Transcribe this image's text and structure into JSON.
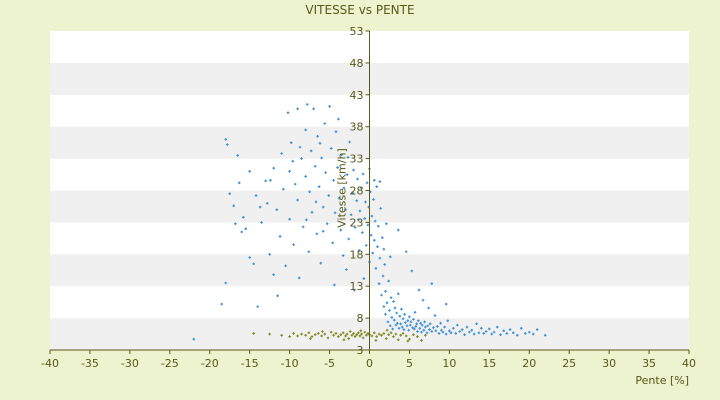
{
  "chart_data": {
    "type": "scatter",
    "title": "VITESSE vs PENTE",
    "xlabel": "Pente [%]",
    "ylabel": "Vitesse [km/h]",
    "xlim": [
      -40,
      40
    ],
    "ylim": [
      3,
      53
    ],
    "xticks": [
      "-40",
      "-35",
      "-30",
      "-25",
      "-20",
      "-15",
      "-10",
      "-5",
      "0",
      "5",
      "10",
      "15",
      "20",
      "25",
      "30",
      "35",
      "40"
    ],
    "yticks": [
      "3",
      "8",
      "13",
      "18",
      "23",
      "28",
      "33",
      "38",
      "43",
      "48",
      "53"
    ],
    "grid": "horizontal alternating bands",
    "legend": "none",
    "colors": {
      "background": "#edf2cf",
      "plot_band_light": "#ffffff",
      "plot_band_dark": "#f0f0f0",
      "axis": "#55591a",
      "series_main": "#3a8fd9",
      "series_low": "#7f8a1e"
    },
    "series": [
      {
        "color": "#3a8fd9",
        "points": [
          [
            -22,
            4.7
          ],
          [
            -18.5,
            10.2
          ],
          [
            -18,
            13.5
          ],
          [
            -18,
            36
          ],
          [
            -17.8,
            35.2
          ],
          [
            -17.5,
            27.5
          ],
          [
            -17,
            25.6
          ],
          [
            -16.5,
            33.5
          ],
          [
            -16.3,
            29.2
          ],
          [
            -16,
            21.5
          ],
          [
            -15.8,
            23.8
          ],
          [
            -15.5,
            22
          ],
          [
            -15,
            17.5
          ],
          [
            -15,
            31
          ],
          [
            -14.5,
            16.5
          ],
          [
            -14.2,
            27.2
          ],
          [
            -14,
            9.8
          ],
          [
            -13.5,
            23
          ],
          [
            -13,
            29.5
          ],
          [
            -12.8,
            26
          ],
          [
            -12.5,
            18
          ],
          [
            -12,
            31.5
          ],
          [
            -12,
            14.8
          ],
          [
            -11.6,
            25
          ],
          [
            -11.2,
            20.8
          ],
          [
            -11,
            33.8
          ],
          [
            -10.8,
            28.2
          ],
          [
            -10.5,
            16.2
          ],
          [
            -10.2,
            40.2
          ],
          [
            -10,
            31
          ],
          [
            -10,
            23.5
          ],
          [
            -9.8,
            35.5
          ],
          [
            -9.5,
            19.5
          ],
          [
            -9.3,
            29
          ],
          [
            -9,
            40.8
          ],
          [
            -9,
            26.5
          ],
          [
            -8.8,
            14.3
          ],
          [
            -8.5,
            33
          ],
          [
            -8.3,
            22.3
          ],
          [
            -8,
            37.5
          ],
          [
            -8,
            30.2
          ],
          [
            -7.8,
            41.5
          ],
          [
            -7.6,
            18.4
          ],
          [
            -7.5,
            27.8
          ],
          [
            -7.3,
            34.2
          ],
          [
            -7.2,
            24.6
          ],
          [
            -7,
            40.8
          ],
          [
            -6.8,
            31.8
          ],
          [
            -6.6,
            21.2
          ],
          [
            -6.5,
            36.5
          ],
          [
            -6.3,
            28.6
          ],
          [
            -6.1,
            16.6
          ],
          [
            -6,
            33.1
          ],
          [
            -5.8,
            25.4
          ],
          [
            -5.6,
            38.5
          ],
          [
            -5.5,
            30.8
          ],
          [
            -5.3,
            22.8
          ],
          [
            -5.1,
            27.2
          ],
          [
            -5,
            41.2
          ],
          [
            -4.8,
            34.6
          ],
          [
            -4.6,
            19.8
          ],
          [
            -4.5,
            29.6
          ],
          [
            -4.3,
            24.5
          ],
          [
            -4.2,
            37.2
          ],
          [
            -4,
            31.6
          ],
          [
            -3.8,
            26.8
          ],
          [
            -3.6,
            21.8
          ],
          [
            -3.5,
            33.6
          ],
          [
            -3.3,
            17.8
          ],
          [
            -3.2,
            28.4
          ],
          [
            -3,
            25
          ],
          [
            -2.8,
            30.5
          ],
          [
            -2.6,
            20.4
          ],
          [
            -2.5,
            35.6
          ],
          [
            -2.3,
            24.2
          ],
          [
            -2.1,
            27.6
          ],
          [
            -2,
            31.2
          ],
          [
            -1.8,
            22.2
          ],
          [
            -1.6,
            26.4
          ],
          [
            -1.5,
            29.8
          ],
          [
            -1.3,
            18.6
          ],
          [
            -1.2,
            24.8
          ],
          [
            -1,
            28.4
          ],
          [
            -0.9,
            21.4
          ],
          [
            -0.8,
            30.6
          ],
          [
            -0.6,
            23.6
          ],
          [
            -0.5,
            26.2
          ],
          [
            -0.4,
            19.4
          ],
          [
            -0.3,
            29.2
          ],
          [
            -0.2,
            22.6
          ],
          [
            -0.1,
            25.4
          ],
          [
            0,
            31.4
          ],
          [
            0,
            16.8
          ],
          [
            0.1,
            27.8
          ],
          [
            0.2,
            21
          ],
          [
            0.3,
            24
          ],
          [
            0.4,
            18.2
          ],
          [
            0.5,
            26.6
          ],
          [
            0.6,
            20.2
          ],
          [
            0.7,
            23.2
          ],
          [
            0.8,
            15.8
          ],
          [
            0.9,
            28.6
          ],
          [
            1,
            19.2
          ],
          [
            1.1,
            22.4
          ],
          [
            1.2,
            13.4
          ],
          [
            1.3,
            17.4
          ],
          [
            1.4,
            25.2
          ],
          [
            1.5,
            11.6
          ],
          [
            1.6,
            20.6
          ],
          [
            1.7,
            14.6
          ],
          [
            1.8,
            9.8
          ],
          [
            1.9,
            16.4
          ],
          [
            2,
            12.2
          ],
          [
            2,
            8.6
          ],
          [
            2.1,
            22.8
          ],
          [
            2.2,
            10.4
          ],
          [
            2.3,
            7.4
          ],
          [
            2.4,
            13.8
          ],
          [
            2.5,
            9.2
          ],
          [
            2.6,
            6.8
          ],
          [
            2.7,
            11.2
          ],
          [
            2.8,
            8.1
          ],
          [
            2.9,
            6.3
          ],
          [
            3,
            10.6
          ],
          [
            3.1,
            7.7
          ],
          [
            3.2,
            9.6
          ],
          [
            3.3,
            6.9
          ],
          [
            3.4,
            8.8
          ],
          [
            3.5,
            7.2
          ],
          [
            3.6,
            11.8
          ],
          [
            3.7,
            6.4
          ],
          [
            3.8,
            8.3
          ],
          [
            3.9,
            7.1
          ],
          [
            4,
            9.4
          ],
          [
            4.1,
            6.6
          ],
          [
            4.2,
            7.9
          ],
          [
            4.3,
            6.2
          ],
          [
            4.4,
            8.6
          ],
          [
            4.5,
            7.3
          ],
          [
            4.6,
            18.4
          ],
          [
            4.7,
            6.8
          ],
          [
            4.8,
            7.6
          ],
          [
            4.9,
            6.1
          ],
          [
            5,
            8.2
          ],
          [
            5.1,
            6.9
          ],
          [
            5.2,
            7.4
          ],
          [
            5.3,
            15.4
          ],
          [
            5.4,
            6.5
          ],
          [
            5.5,
            7.8
          ],
          [
            5.6,
            6.3
          ],
          [
            5.7,
            8.9
          ],
          [
            5.8,
            6.7
          ],
          [
            5.9,
            7.1
          ],
          [
            6,
            5.9
          ],
          [
            6.1,
            7.6
          ],
          [
            6.2,
            12.4
          ],
          [
            6.3,
            6.4
          ],
          [
            6.4,
            7.2
          ],
          [
            6.5,
            5.8
          ],
          [
            6.6,
            6.9
          ],
          [
            6.7,
            10.8
          ],
          [
            6.8,
            6.1
          ],
          [
            6.9,
            7.4
          ],
          [
            7,
            6.6
          ],
          [
            7.2,
            5.7
          ],
          [
            7.3,
            6.8
          ],
          [
            7.4,
            9.6
          ],
          [
            7.5,
            6.2
          ],
          [
            7.6,
            7.1
          ],
          [
            7.8,
            5.9
          ],
          [
            8,
            6.5
          ],
          [
            8.2,
            8.4
          ],
          [
            8.3,
            6
          ],
          [
            8.5,
            6.7
          ],
          [
            8.7,
            5.6
          ],
          [
            8.9,
            7.2
          ],
          [
            9,
            6.1
          ],
          [
            9.2,
            5.8
          ],
          [
            9.4,
            6.6
          ],
          [
            9.6,
            5.5
          ],
          [
            9.8,
            7.6
          ],
          [
            10,
            6
          ],
          [
            10.2,
            5.7
          ],
          [
            10.5,
            6.4
          ],
          [
            10.8,
            5.6
          ],
          [
            11,
            6.9
          ],
          [
            11.3,
            5.9
          ],
          [
            11.6,
            6.2
          ],
          [
            11.9,
            5.4
          ],
          [
            12.2,
            6.6
          ],
          [
            12.5,
            5.8
          ],
          [
            12.8,
            6.1
          ],
          [
            13.1,
            5.5
          ],
          [
            13.4,
            7.1
          ],
          [
            13.7,
            5.7
          ],
          [
            14,
            6.4
          ],
          [
            14.3,
            5.6
          ],
          [
            14.6,
            5.9
          ],
          [
            15,
            6.3
          ],
          [
            15.3,
            5.5
          ],
          [
            15.6,
            5.8
          ],
          [
            16,
            6.6
          ],
          [
            16.4,
            5.4
          ],
          [
            16.8,
            6
          ],
          [
            17.2,
            5.6
          ],
          [
            17.6,
            6.2
          ],
          [
            18,
            5.7
          ],
          [
            18.5,
            5.3
          ],
          [
            19,
            6.4
          ],
          [
            19.5,
            5.6
          ],
          [
            20,
            5.8
          ],
          [
            20.5,
            5.5
          ],
          [
            21,
            6.2
          ],
          [
            22,
            5.3
          ],
          [
            -5.8,
            21.6
          ],
          [
            -12.4,
            29.6
          ],
          [
            -9.6,
            32.6
          ],
          [
            -13.7,
            25.4
          ],
          [
            -16.8,
            22.8
          ],
          [
            -11.5,
            11.5
          ],
          [
            -4.4,
            13.2
          ],
          [
            -2.9,
            15.6
          ],
          [
            -1.9,
            12.4
          ],
          [
            -0.7,
            14.2
          ],
          [
            1.3,
            29.4
          ],
          [
            9.6,
            10.2
          ],
          [
            7.8,
            13.4
          ],
          [
            3.6,
            21.8
          ],
          [
            1.8,
            18.8
          ],
          [
            -6.7,
            26.2
          ],
          [
            -7.9,
            23.4
          ],
          [
            -8.7,
            34.8
          ],
          [
            -3.9,
            39.2
          ],
          [
            -6.2,
            35.4
          ],
          [
            -2.7,
            33.2
          ],
          [
            -1.4,
            23.4
          ],
          [
            0.6,
            29.6
          ],
          [
            2.6,
            17.6
          ]
        ]
      },
      {
        "color": "#7f8a1e",
        "points": [
          [
            -14.5,
            5.6
          ],
          [
            -11,
            5.3
          ],
          [
            -10,
            5.1
          ],
          [
            -9.5,
            5.6
          ],
          [
            -9,
            5.2
          ],
          [
            -8.5,
            5.5
          ],
          [
            -8,
            5.3
          ],
          [
            -7.6,
            5.7
          ],
          [
            -7.2,
            5.1
          ],
          [
            -6.8,
            5.4
          ],
          [
            -6.4,
            5.6
          ],
          [
            -6,
            5.2
          ],
          [
            -5.6,
            5.5
          ],
          [
            -5.2,
            4.9
          ],
          [
            -4.8,
            5.8
          ],
          [
            -4.5,
            5.3
          ],
          [
            -4.2,
            5.6
          ],
          [
            -3.9,
            5.1
          ],
          [
            -3.6,
            5.4
          ],
          [
            -3.3,
            5.7
          ],
          [
            -3,
            5.2
          ],
          [
            -2.8,
            5.5
          ],
          [
            -2.6,
            4.8
          ],
          [
            -2.4,
            5.9
          ],
          [
            -2.2,
            5.3
          ],
          [
            -2,
            5.6
          ],
          [
            -1.8,
            5.1
          ],
          [
            -1.6,
            5.4
          ],
          [
            -1.4,
            5.7
          ],
          [
            -1.2,
            5.2
          ],
          [
            -1,
            5.5
          ],
          [
            -0.8,
            4.9
          ],
          [
            -0.6,
            5.8
          ],
          [
            -0.4,
            5.3
          ],
          [
            -0.2,
            5.6
          ],
          [
            0,
            5.4
          ],
          [
            0.3,
            5.2
          ],
          [
            0.6,
            5.7
          ],
          [
            0.9,
            5.1
          ],
          [
            1.2,
            5.5
          ],
          [
            1.5,
            5.3
          ],
          [
            1.8,
            5.6
          ],
          [
            2.1,
            4.8
          ],
          [
            2.4,
            5.4
          ],
          [
            2.7,
            5.7
          ],
          [
            3,
            5.1
          ],
          [
            3.3,
            5.5
          ],
          [
            3.6,
            4.6
          ],
          [
            3.9,
            5.3
          ],
          [
            4.2,
            5.6
          ],
          [
            4.6,
            5.2
          ],
          [
            5,
            4.7
          ],
          [
            5.5,
            5.4
          ],
          [
            6,
            5.1
          ],
          [
            6.5,
            4.5
          ],
          [
            7,
            5.3
          ],
          [
            -12.5,
            5.5
          ],
          [
            -7.4,
            4.8
          ],
          [
            -5.9,
            5.9
          ],
          [
            -3.2,
            4.6
          ],
          [
            -1.1,
            6
          ],
          [
            0.8,
            4.5
          ],
          [
            2.2,
            6.1
          ],
          [
            4.8,
            4.4
          ]
        ]
      }
    ]
  }
}
